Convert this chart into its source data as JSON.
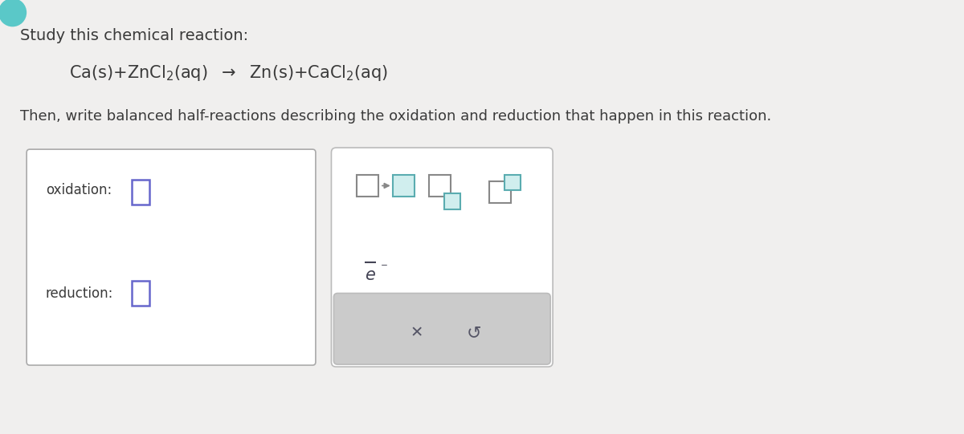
{
  "background_color": "#e8e8e8",
  "page_color": "#f0efee",
  "title_text": "Study this chemical reaction:",
  "instruction_text": "Then, write balanced half-reactions describing the oxidation and reduction that happen in this reaction.",
  "oxidation_label": "oxidation:",
  "reduction_label": "reduction:",
  "text_color": "#3a3a3a",
  "left_box_border": "#aaaaaa",
  "right_box_border": "#bbbbbb",
  "small_box_purple": "#6666cc",
  "small_box_teal": "#5aacb0",
  "small_box_gray": "#888888",
  "bottom_panel_color": "#cccccc",
  "x_color": "#555566",
  "refresh_color": "#555566",
  "e_color": "#444455"
}
